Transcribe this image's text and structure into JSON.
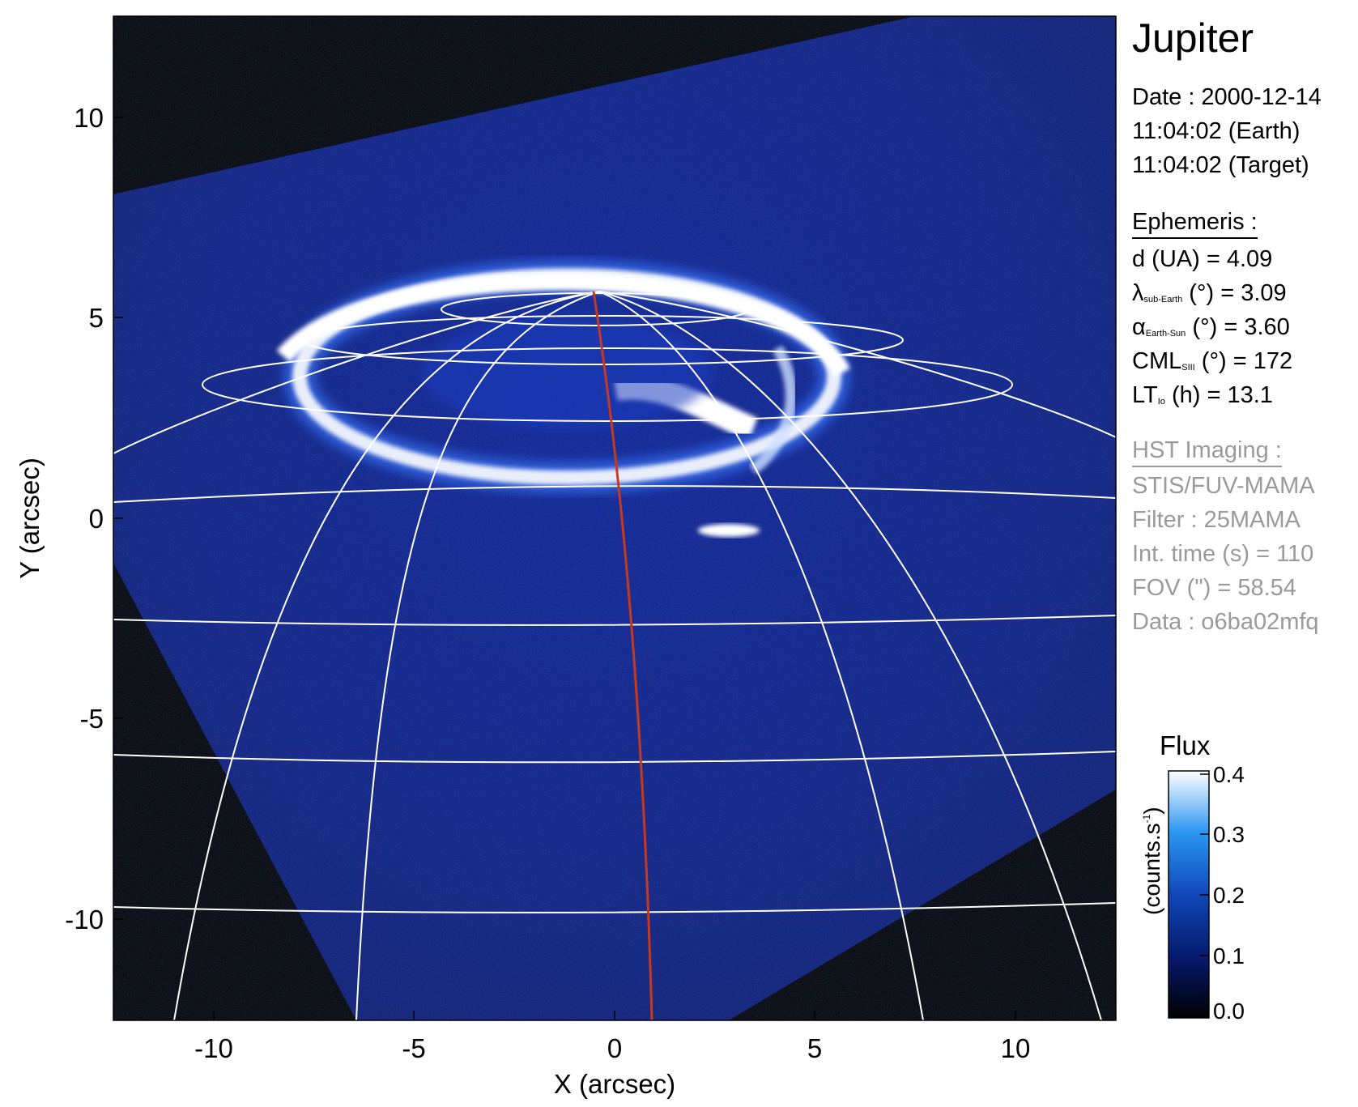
{
  "title": "Jupiter",
  "date_label": "Date : 2000-12-14",
  "time_earth": "11:04:02 (Earth)",
  "time_target": "11:04:02 (Target)",
  "ephemeris": {
    "header": "Ephemeris :",
    "d_ua": "d (UA)    = 4.09",
    "lambda_prefix": "λ",
    "lambda_sub": "sub-Earth",
    "lambda_rest": " (°) = 3.09",
    "alpha_prefix": "α",
    "alpha_sub": "Earth-Sun",
    "alpha_rest": " (°) = 3.60",
    "cml_prefix": "CML",
    "cml_sub": "SIII",
    "cml_rest": " (°) = 172",
    "lt_prefix": "LT",
    "lt_sub": "Io",
    "lt_rest": " (h) = 13.1"
  },
  "hst": {
    "header": "HST Imaging :",
    "instrument": "STIS/FUV-MAMA",
    "filter": "Filter : 25MAMA",
    "int_time": "Int. time (s) = 110",
    "fov": "FOV (\") = 58.54",
    "data": "Data : o6ba02mfq"
  },
  "colorbar": {
    "title": "Flux",
    "unit_prefix": "(counts.s",
    "unit_sup": "-1",
    "unit_suffix": ")",
    "ticks": [
      "0.4",
      "0.3",
      "0.2",
      "0.1",
      "0.0"
    ]
  },
  "axes": {
    "xlabel": "X (arcsec)",
    "ylabel": "Y (arcsec)",
    "x_ticks": [
      "-10",
      "-5",
      "0",
      "5",
      "10"
    ],
    "y_ticks": [
      "10",
      "5",
      "0",
      "-5",
      "-10"
    ]
  },
  "colors": {
    "image_dark": "#06104a",
    "aurora": "#ffffff",
    "grid": "#ffffff",
    "meridian": "#c8391c",
    "panel_text": "#000000",
    "panel_gray": "#9a9a9a"
  }
}
